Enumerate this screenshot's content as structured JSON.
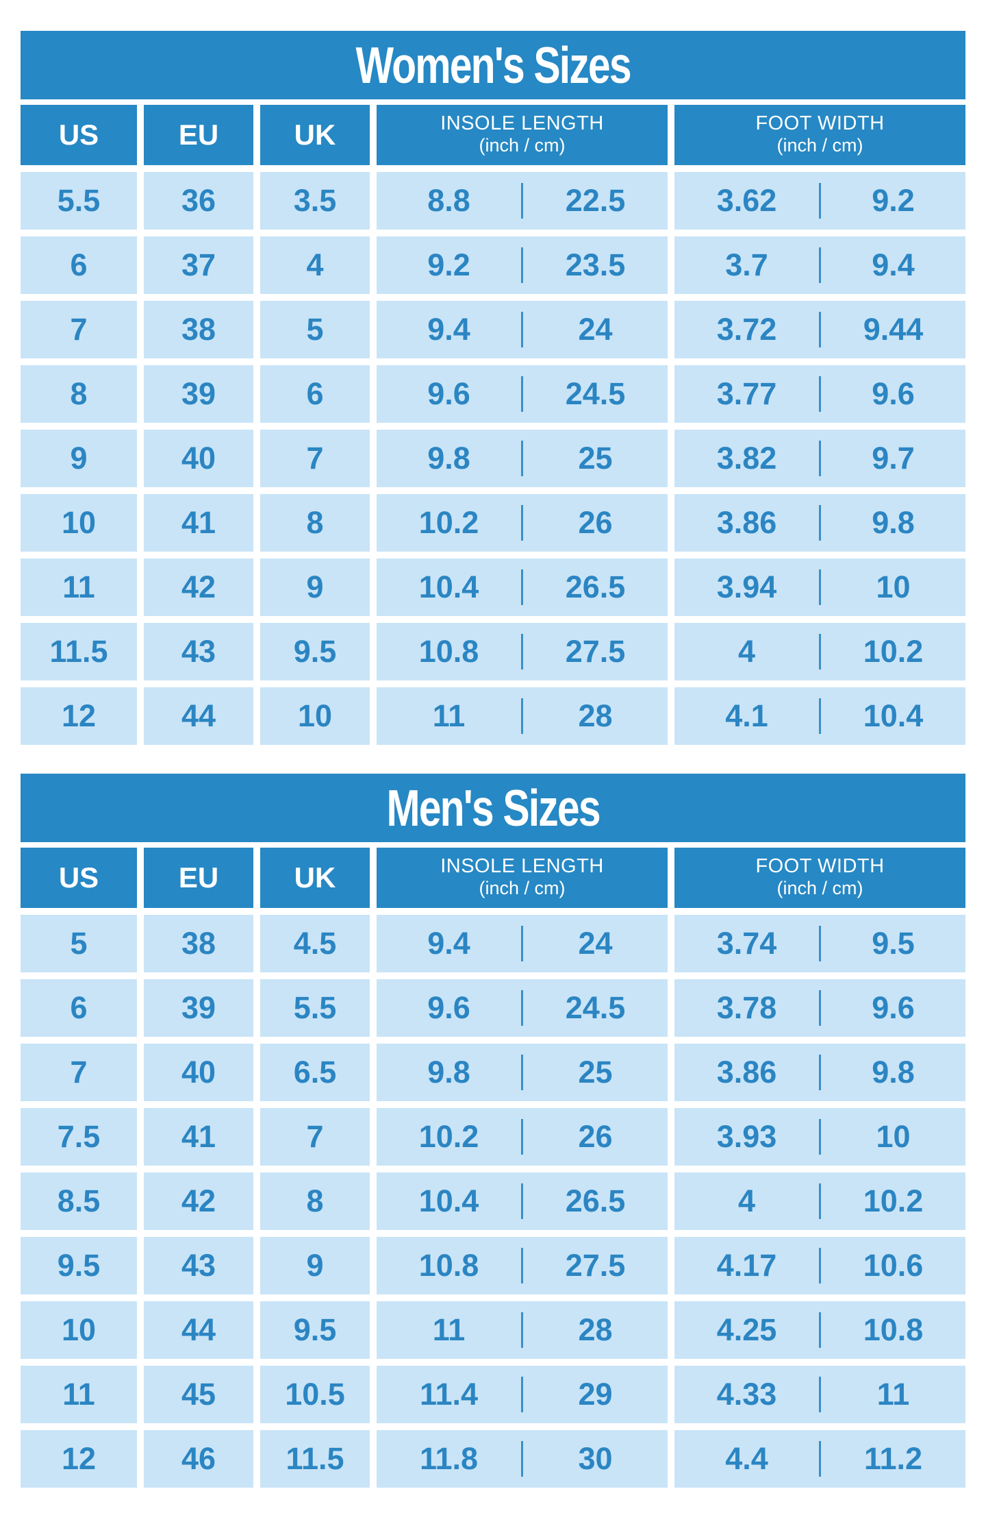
{
  "colors": {
    "header_blue": "#2688c4",
    "cell_blue": "#c9e4f7",
    "text_blue": "#2b85c2",
    "divider_blue": "#3c8fc5",
    "title_text": "#ffffff"
  },
  "chart_data": [
    {
      "type": "table",
      "name": "womens-sizes-table",
      "title": "Women's Sizes",
      "columns": [
        "US",
        "EU",
        "UK",
        "INSOLE LENGTH",
        "FOOT WIDTH"
      ],
      "column_subs": [
        "",
        "",
        "",
        "(inch / cm)",
        "(inch / cm)"
      ],
      "rows": [
        [
          "5.5",
          "36",
          "3.5",
          "8.8",
          "22.5",
          "3.62",
          "9.2"
        ],
        [
          "6",
          "37",
          "4",
          "9.2",
          "23.5",
          "3.7",
          "9.4"
        ],
        [
          "7",
          "38",
          "5",
          "9.4",
          "24",
          "3.72",
          "9.44"
        ],
        [
          "8",
          "39",
          "6",
          "9.6",
          "24.5",
          "3.77",
          "9.6"
        ],
        [
          "9",
          "40",
          "7",
          "9.8",
          "25",
          "3.82",
          "9.7"
        ],
        [
          "10",
          "41",
          "8",
          "10.2",
          "26",
          "3.86",
          "9.8"
        ],
        [
          "11",
          "42",
          "9",
          "10.4",
          "26.5",
          "3.94",
          "10"
        ],
        [
          "11.5",
          "43",
          "9.5",
          "10.8",
          "27.5",
          "4",
          "10.2"
        ],
        [
          "12",
          "44",
          "10",
          "11",
          "28",
          "4.1",
          "10.4"
        ]
      ]
    },
    {
      "type": "table",
      "name": "mens-sizes-table",
      "title": "Men's Sizes",
      "columns": [
        "US",
        "EU",
        "UK",
        "INSOLE LENGTH",
        "FOOT WIDTH"
      ],
      "column_subs": [
        "",
        "",
        "",
        "(inch / cm)",
        "(inch / cm)"
      ],
      "rows": [
        [
          "5",
          "38",
          "4.5",
          "9.4",
          "24",
          "3.74",
          "9.5"
        ],
        [
          "6",
          "39",
          "5.5",
          "9.6",
          "24.5",
          "3.78",
          "9.6"
        ],
        [
          "7",
          "40",
          "6.5",
          "9.8",
          "25",
          "3.86",
          "9.8"
        ],
        [
          "7.5",
          "41",
          "7",
          "10.2",
          "26",
          "3.93",
          "10"
        ],
        [
          "8.5",
          "42",
          "8",
          "10.4",
          "26.5",
          "4",
          "10.2"
        ],
        [
          "9.5",
          "43",
          "9",
          "10.8",
          "27.5",
          "4.17",
          "10.6"
        ],
        [
          "10",
          "44",
          "9.5",
          "11",
          "28",
          "4.25",
          "10.8"
        ],
        [
          "11",
          "45",
          "10.5",
          "11.4",
          "29",
          "4.33",
          "11"
        ],
        [
          "12",
          "46",
          "11.5",
          "11.8",
          "30",
          "4.4",
          "11.2"
        ]
      ]
    }
  ]
}
